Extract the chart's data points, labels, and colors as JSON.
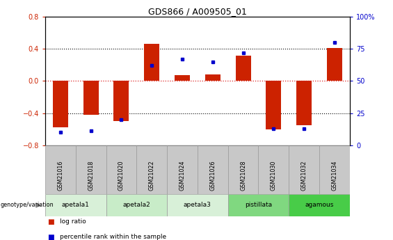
{
  "title": "GDS866 / A009505_01",
  "samples": [
    "GSM21016",
    "GSM21018",
    "GSM21020",
    "GSM21022",
    "GSM21024",
    "GSM21026",
    "GSM21028",
    "GSM21030",
    "GSM21032",
    "GSM21034"
  ],
  "log_ratio": [
    -0.58,
    -0.42,
    -0.5,
    0.46,
    0.07,
    0.08,
    0.32,
    -0.6,
    -0.55,
    0.41
  ],
  "percentile": [
    10,
    11,
    20,
    62,
    67,
    65,
    72,
    13,
    13,
    80
  ],
  "groups": [
    {
      "name": "apetala1",
      "samples": [
        0,
        1
      ],
      "color": "#d8f0d8"
    },
    {
      "name": "apetala2",
      "samples": [
        2,
        3
      ],
      "color": "#c8ecc8"
    },
    {
      "name": "apetala3",
      "samples": [
        4,
        5
      ],
      "color": "#d8f0d8"
    },
    {
      "name": "pistillata",
      "samples": [
        6,
        7
      ],
      "color": "#80d880"
    },
    {
      "name": "agamous",
      "samples": [
        8,
        9
      ],
      "color": "#48cc48"
    }
  ],
  "ylim_left": [
    -0.8,
    0.8
  ],
  "ylim_right": [
    0,
    100
  ],
  "yticks_left": [
    -0.8,
    -0.4,
    0.0,
    0.4,
    0.8
  ],
  "yticks_right": [
    0,
    25,
    50,
    75,
    100
  ],
  "bar_color": "#cc2200",
  "dot_color": "#0000cc",
  "background_color": "#ffffff",
  "genotype_label": "genotype/variation",
  "legend_log_ratio": "log ratio",
  "legend_percentile": "percentile rank within the sample",
  "header_bg": "#c8c8c8",
  "header_border": "#999999"
}
